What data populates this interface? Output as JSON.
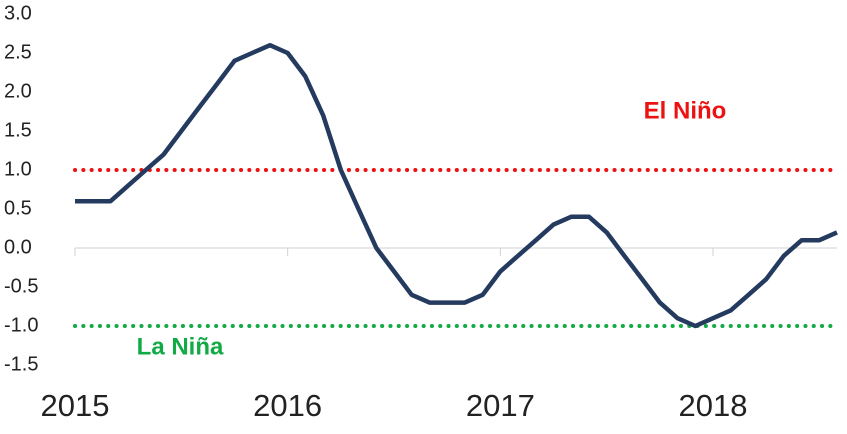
{
  "chart_data": {
    "type": "line",
    "x": [
      2015,
      2015.083,
      2015.167,
      2015.25,
      2015.333,
      2015.417,
      2015.5,
      2015.583,
      2015.667,
      2015.75,
      2015.833,
      2015.917,
      2016,
      2016.083,
      2016.167,
      2016.25,
      2016.333,
      2016.417,
      2016.5,
      2016.583,
      2016.667,
      2016.75,
      2016.833,
      2016.917,
      2017,
      2017.083,
      2017.167,
      2017.25,
      2017.333,
      2017.417,
      2017.5,
      2017.583,
      2017.667,
      2017.75,
      2017.833,
      2017.917,
      2018,
      2018.083,
      2018.167,
      2018.25,
      2018.333,
      2018.417,
      2018.5,
      2018.583
    ],
    "series": [
      {
        "color": "#243a5e",
        "values": [
          0.6,
          0.6,
          0.6,
          0.8,
          1.0,
          1.2,
          1.5,
          1.8,
          2.1,
          2.4,
          2.5,
          2.6,
          2.5,
          2.2,
          1.7,
          1.0,
          0.5,
          0.0,
          -0.3,
          -0.6,
          -0.7,
          -0.7,
          -0.7,
          -0.6,
          -0.3,
          -0.1,
          0.1,
          0.3,
          0.4,
          0.4,
          0.2,
          -0.1,
          -0.4,
          -0.7,
          -0.9,
          -1.0,
          -0.9,
          -0.8,
          -0.6,
          -0.4,
          -0.1,
          0.1,
          0.1,
          0.2
        ]
      }
    ],
    "xlim": [
      2015,
      2018.583
    ],
    "xticks": [
      2015,
      2016,
      2017,
      2018
    ],
    "ylim": [
      -1.5,
      3.0
    ],
    "yticks": [
      {
        "value": 3.0,
        "label": "3.0"
      },
      {
        "value": 2.5,
        "label": "2.5"
      },
      {
        "value": 2.0,
        "label": "2.0"
      },
      {
        "value": 1.5,
        "label": "1.5"
      },
      {
        "value": 1.0,
        "label": "1.0"
      },
      {
        "value": 0.5,
        "label": "0.5"
      },
      {
        "value": 0.0,
        "label": "0.0"
      },
      {
        "value": -0.5,
        "label": "-0.5"
      },
      {
        "value": -1.0,
        "label": "-1.0"
      },
      {
        "value": -1.5,
        "label": "-1.5"
      }
    ],
    "reference_lines": [
      {
        "value": 1,
        "label": "El Niño",
        "color": "#ee1111"
      },
      {
        "value": -1,
        "label": "La Niña",
        "color": "#11aa44"
      }
    ]
  }
}
